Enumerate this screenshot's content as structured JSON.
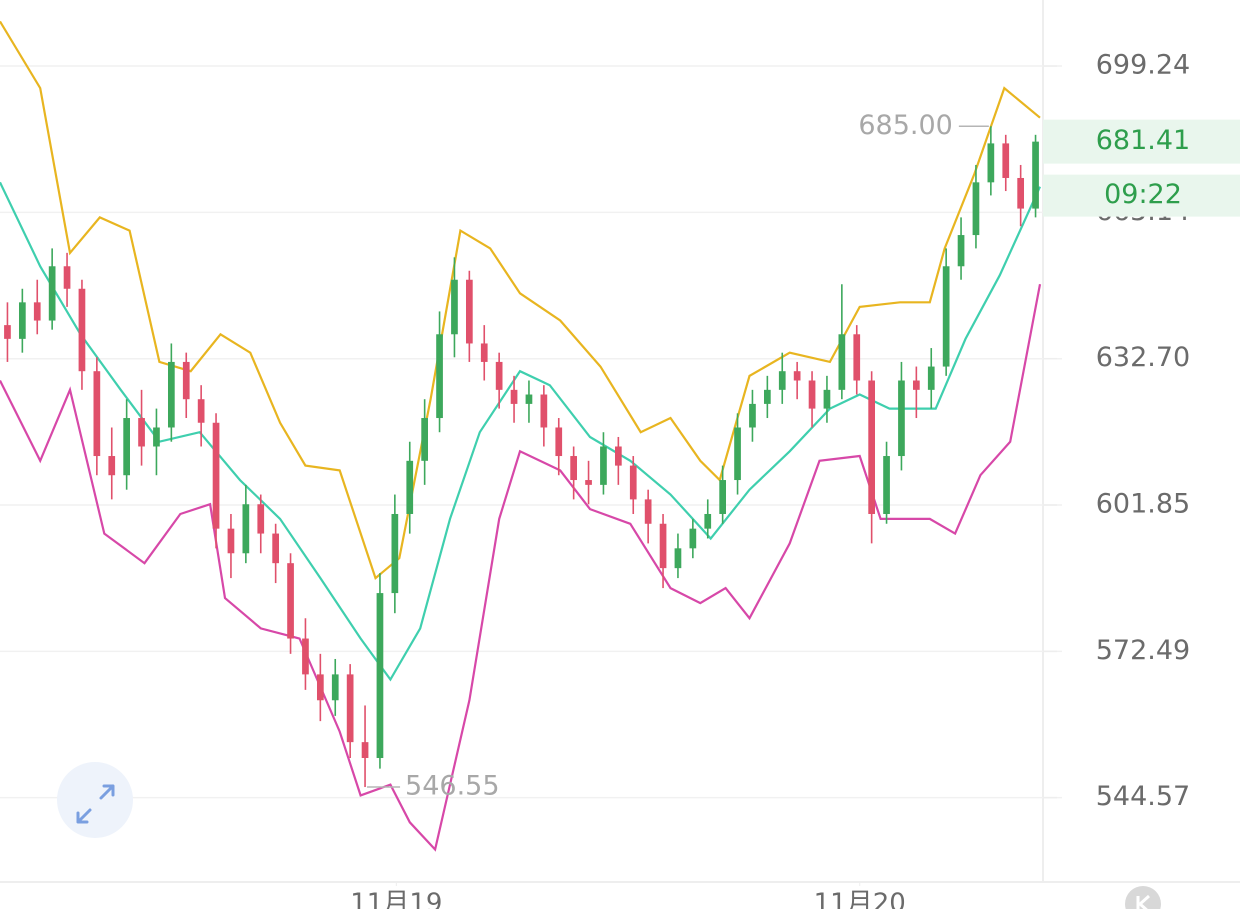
{
  "chart_data": {
    "type": "candlestick",
    "x": [
      0,
      1,
      2,
      3,
      4,
      5,
      6,
      7,
      8,
      9,
      10,
      11,
      12,
      13,
      14,
      15,
      16,
      17,
      18,
      19,
      20,
      21,
      22,
      23,
      24,
      25,
      26,
      27,
      28,
      29,
      30,
      31,
      32,
      33,
      34,
      35,
      36,
      37,
      38,
      39,
      40,
      41,
      42,
      43,
      44,
      45,
      46,
      47,
      48,
      49,
      50,
      51,
      52,
      53,
      54,
      55,
      56,
      57,
      58,
      59,
      60,
      61,
      62,
      63,
      64,
      65,
      66,
      67,
      68,
      69
    ],
    "open": [
      640,
      637,
      645,
      641,
      653,
      648,
      630,
      612,
      608,
      620,
      614,
      618,
      632,
      624,
      619,
      597,
      592,
      602,
      596,
      590,
      575,
      568,
      563,
      568,
      555,
      552,
      584,
      600,
      611,
      620,
      638,
      650,
      636,
      632,
      626,
      623,
      625,
      618,
      612,
      607,
      606,
      614,
      610,
      603,
      598,
      589,
      593,
      597,
      600,
      607,
      618,
      623,
      626,
      630,
      628,
      622,
      626,
      638,
      628,
      600,
      612,
      628,
      626,
      631,
      653,
      660,
      672,
      681,
      673,
      666
    ],
    "high": [
      645,
      648,
      650,
      657,
      656,
      650,
      633,
      618,
      624,
      626,
      622,
      636,
      634,
      627,
      621,
      600,
      606,
      604,
      598,
      592,
      579,
      572,
      571,
      570,
      562,
      588,
      604,
      615,
      624,
      643,
      655,
      652,
      640,
      634,
      629,
      628,
      627,
      620,
      614,
      611,
      617,
      616,
      612,
      605,
      600,
      596,
      599,
      603,
      610,
      621,
      626,
      629,
      634,
      632,
      630,
      629,
      649,
      640,
      630,
      615,
      632,
      631,
      635,
      657,
      664,
      676,
      685,
      683,
      676,
      683
    ],
    "low": [
      632,
      634,
      638,
      639,
      644,
      626,
      608,
      603,
      605,
      610,
      608,
      615,
      620,
      614,
      593,
      587,
      590,
      592,
      586,
      572,
      565,
      559,
      560,
      552,
      546.55,
      550,
      580,
      596,
      606,
      617,
      633,
      632,
      628,
      622,
      619,
      619,
      614,
      608,
      603,
      602,
      604,
      606,
      600,
      594,
      585,
      587,
      591,
      595,
      598,
      604,
      615,
      620,
      623,
      624,
      618,
      619,
      624,
      625,
      594,
      598,
      609,
      620,
      622,
      629,
      650,
      657,
      669,
      670,
      662,
      664
    ],
    "close": [
      637,
      645,
      641,
      653,
      648,
      630,
      612,
      608,
      620,
      614,
      618,
      632,
      624,
      619,
      597,
      592,
      602,
      596,
      590,
      575,
      568,
      563,
      568,
      555,
      552,
      584,
      600,
      611,
      620,
      638,
      650,
      636,
      632,
      626,
      623,
      625,
      618,
      612,
      607,
      606,
      614,
      610,
      603,
      598,
      589,
      593,
      597,
      600,
      607,
      618,
      623,
      626,
      630,
      628,
      622,
      626,
      638,
      628,
      600,
      612,
      628,
      626,
      631,
      653,
      660,
      672,
      681,
      673,
      666,
      681.41
    ],
    "up_color": "#3da85c",
    "down_color": "#e0506b",
    "bands": [
      {
        "color": "#e8b520",
        "x": [
          -0.5,
          2.2,
          4.2,
          6.2,
          8.2,
          10.2,
          12.3,
          14.3,
          16.3,
          18.3,
          20,
          22.3,
          24.7,
          26.3,
          28.4,
          30.4,
          32.4,
          34.4,
          37.1,
          39.8,
          42.5,
          44.5,
          46.5,
          47.8,
          49.8,
          52.5,
          55.2,
          57.2,
          59.9,
          61.9,
          62.9,
          64.9,
          66.9,
          69.3
        ],
        "values": [
          710,
          694,
          656,
          664,
          661,
          632,
          630,
          638,
          634,
          619,
          610,
          609,
          587,
          591,
          624,
          661,
          657,
          647,
          641,
          631,
          617,
          620,
          611,
          607,
          629,
          634,
          632,
          644,
          645,
          645,
          657,
          674,
          694,
          687
        ]
      },
      {
        "color": "#3fcfae",
        "x": [
          -0.5,
          2.2,
          4.9,
          7.6,
          10.2,
          12.9,
          15.6,
          18.3,
          21,
          23.7,
          25.7,
          27.7,
          29.7,
          31.7,
          34.4,
          36.4,
          39.1,
          41.8,
          44.5,
          47.2,
          49.8,
          52.5,
          55.2,
          57.2,
          59.2,
          62.3,
          64.3,
          66.6,
          69.3
        ],
        "values": [
          672,
          653,
          638,
          626,
          615,
          617,
          607,
          599,
          587,
          575,
          567,
          577,
          599,
          617,
          630,
          627,
          616,
          611,
          604,
          595,
          605,
          613,
          622,
          625,
          622,
          622,
          637,
          651,
          671
        ]
      },
      {
        "color": "#d748a8",
        "x": [
          -0.5,
          2.2,
          4.2,
          6.5,
          9.2,
          11.6,
          13.6,
          14.6,
          17,
          19.6,
          22.3,
          23.7,
          25.7,
          27,
          28.7,
          31,
          33,
          34.4,
          37.1,
          39.1,
          41.8,
          44.5,
          46.5,
          48.2,
          49.8,
          52.5,
          54.5,
          57.2,
          58.6,
          61.9,
          63.6,
          65.3,
          67.3,
          69.3
        ],
        "values": [
          628,
          611,
          626,
          596,
          590,
          600,
          602,
          583,
          577,
          575,
          557,
          545,
          547,
          540,
          535,
          563,
          599,
          613,
          609,
          601,
          598,
          585,
          582,
          585,
          579,
          594,
          611,
          612,
          599,
          599,
          596,
          608,
          615,
          649
        ]
      }
    ],
    "xlim": [
      -0.5,
      69.5
    ],
    "xticks": [
      {
        "value": 26.1,
        "label": "11月19"
      },
      {
        "value": 57.2,
        "label": "11月20"
      }
    ],
    "ylim": [
      529.1,
      715.2
    ],
    "log_scale": true,
    "grid": true,
    "yticks": [
      699.24,
      665.14,
      {
        "value": 632.7,
        "label": "632.70"
      },
      601.85,
      572.49,
      544.57
    ],
    "high_marker": {
      "value": 685,
      "label": "685.00"
    },
    "low_marker": {
      "value": 546.55,
      "label": "546.55"
    },
    "last_price": {
      "value": 681.41,
      "label": "681.41"
    },
    "countdown": "09:22"
  }
}
